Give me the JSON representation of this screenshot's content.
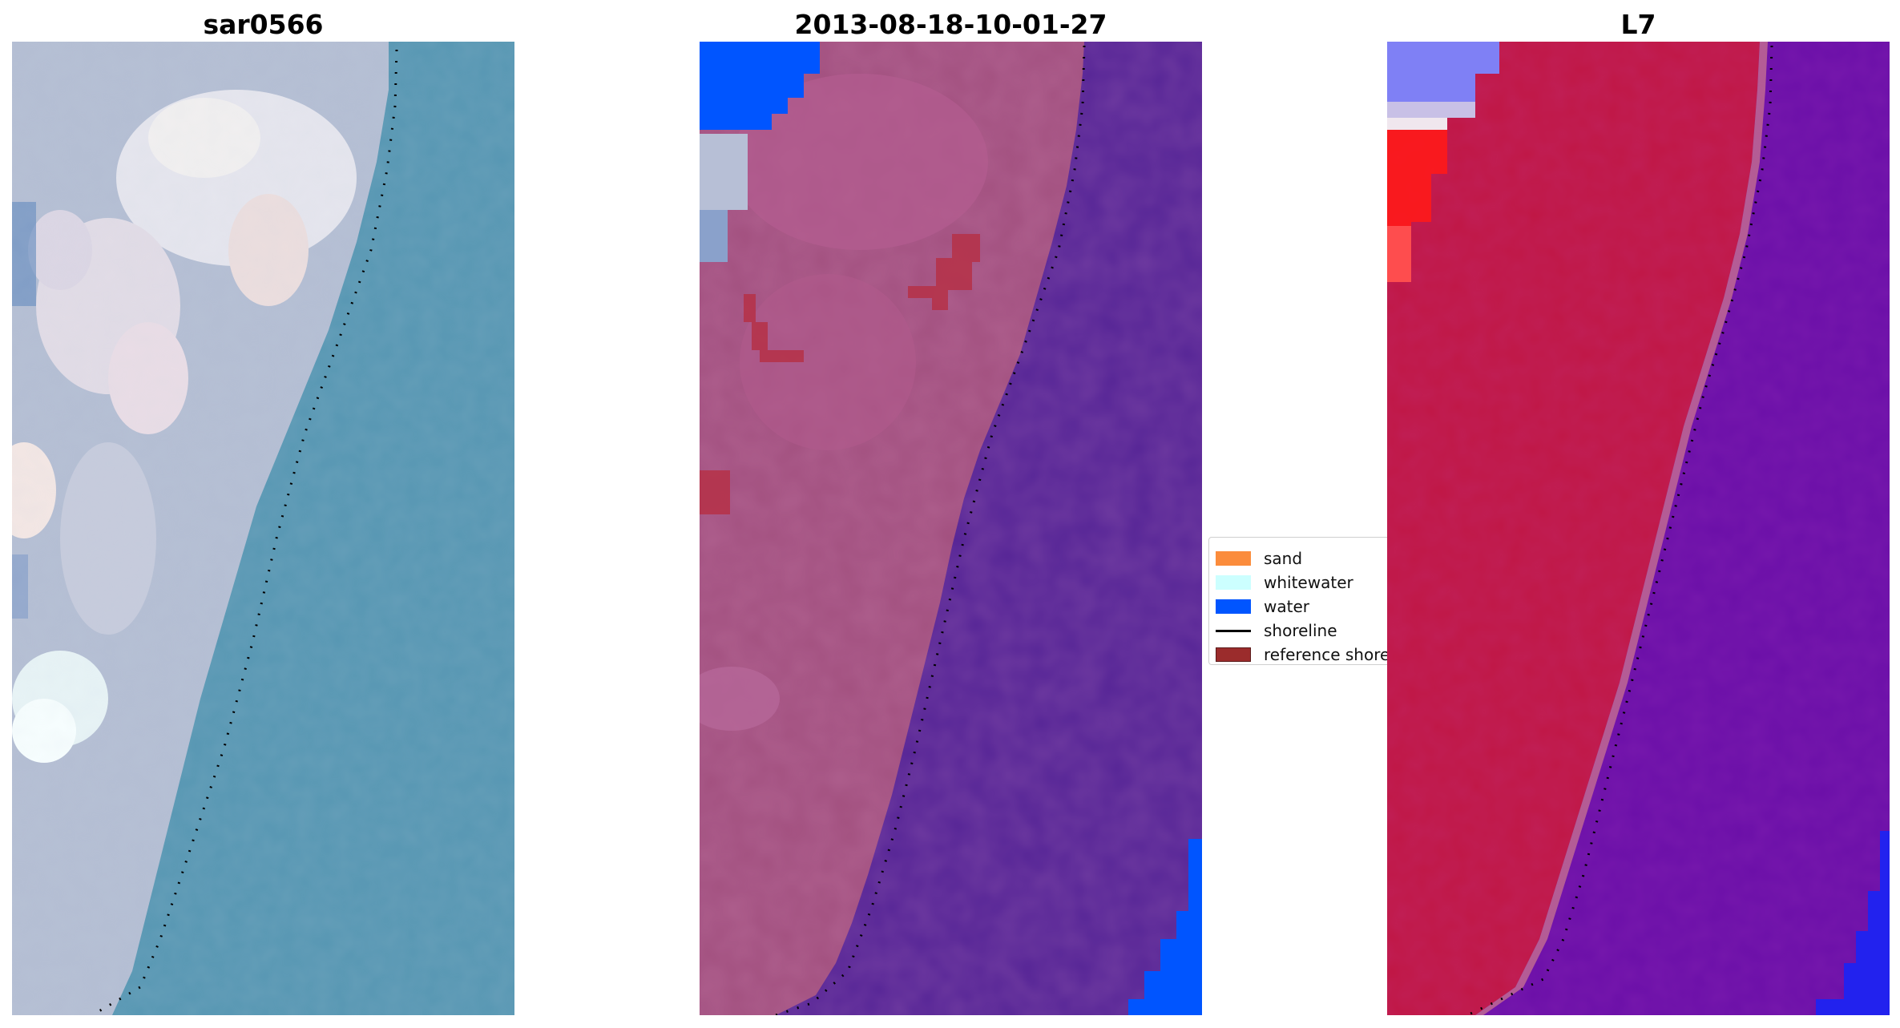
{
  "panels": [
    {
      "title": "sar0566"
    },
    {
      "title": "2013-08-18-10-01-27"
    },
    {
      "title": "L7"
    }
  ],
  "legend": {
    "items": [
      {
        "label": "sand",
        "color": "#fb8c3c",
        "kind": "patch"
      },
      {
        "label": "whitewater",
        "color": "#ccffff",
        "kind": "patch"
      },
      {
        "label": "water",
        "color": "#0055ff",
        "kind": "patch"
      },
      {
        "label": "shoreline",
        "color": "#000000",
        "kind": "line"
      },
      {
        "label": "reference shore",
        "color": "#9b2c2c",
        "kind": "patch"
      }
    ]
  },
  "colors": {
    "sea_rgb": "#5797b3",
    "beach_rgb": "#b9c3d6",
    "classified_sand": "#a2507f",
    "classified_sea": "#552496",
    "classified_water": "#0055ff",
    "l7_land": "#c01745",
    "l7_sea": "#6b0fa8",
    "l7_water": "#2222ee"
  }
}
